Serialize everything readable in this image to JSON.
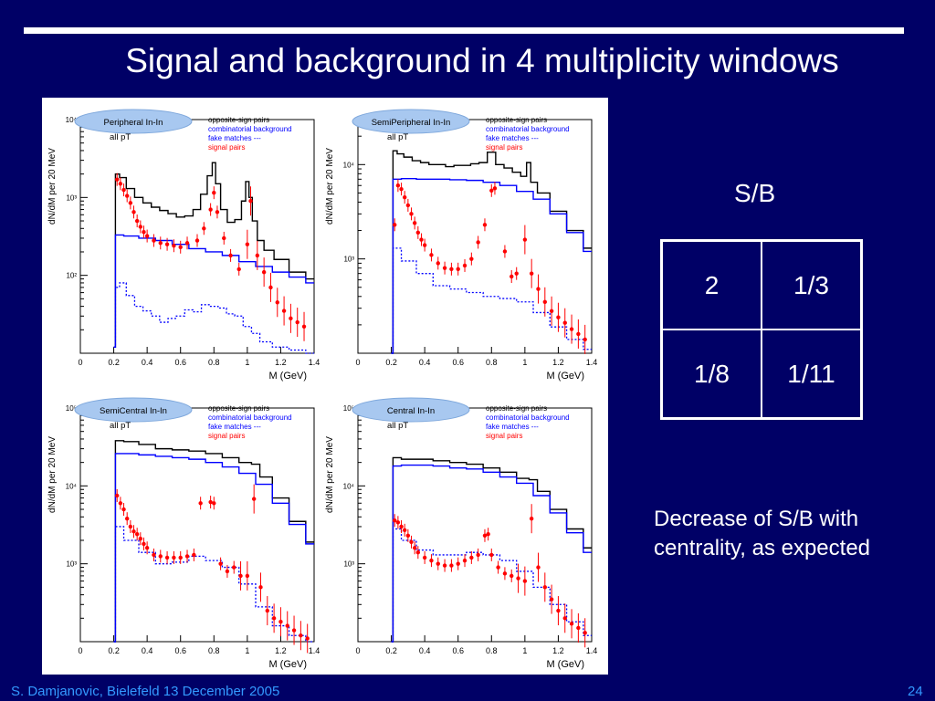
{
  "slide": {
    "title": "Signal and background in 4 multiplicity windows",
    "footer_left": "S. Damjanovic, Bielefeld 13 December 2005",
    "page_number": "24"
  },
  "sb": {
    "label": "S/B",
    "table": [
      [
        "2",
        "1/3"
      ],
      [
        "1/8",
        "1/11"
      ]
    ]
  },
  "note": "Decrease of S/B with centrality, as expected",
  "colors": {
    "background": "#000066",
    "text": "#ffffff",
    "footer": "#3399ff",
    "oppositeSign": "#000000",
    "combinatorial": "#0000ff",
    "fake": "#0000ff",
    "signal": "#ff0000"
  },
  "chart_data": [
    {
      "type": "line",
      "title": "Peripheral In-In",
      "subtitle": "all pT",
      "xlabel": "M (GeV)",
      "ylabel": "dN/dM per 20 MeV",
      "xlim": [
        0,
        1.4
      ],
      "ylim": [
        10,
        10000
      ],
      "yscale": "log",
      "xticks": [
        "0",
        "0.2",
        "0.4",
        "0.6",
        "0.8",
        "1",
        "1.2",
        "1.4"
      ],
      "yticks": [
        {
          "v": 100,
          "label": "10²"
        },
        {
          "v": 1000,
          "label": "10³"
        },
        {
          "v": 10000,
          "label": "10⁴"
        }
      ],
      "legend": [
        "opposite-sign pairs",
        "combinatorial background",
        "fake matches ---",
        "signal pairs"
      ],
      "series": [
        {
          "name": "opposite-sign pairs",
          "x": [
            0.2,
            0.22,
            0.25,
            0.3,
            0.35,
            0.4,
            0.45,
            0.5,
            0.55,
            0.6,
            0.65,
            0.7,
            0.74,
            0.78,
            0.8,
            0.82,
            0.86,
            0.9,
            0.95,
            0.98,
            1.0,
            1.02,
            1.04,
            1.08,
            1.12,
            1.2,
            1.3,
            1.4
          ],
          "y": [
            12,
            2000,
            1800,
            1300,
            1000,
            850,
            750,
            680,
            620,
            560,
            580,
            700,
            1100,
            1900,
            2800,
            1500,
            700,
            480,
            520,
            900,
            1600,
            1000,
            500,
            280,
            210,
            160,
            110,
            90
          ]
        },
        {
          "name": "combinatorial background",
          "x": [
            0.2,
            0.22,
            0.3,
            0.4,
            0.5,
            0.6,
            0.7,
            0.8,
            0.9,
            1.0,
            1.1,
            1.2,
            1.3,
            1.4
          ],
          "y": [
            12,
            330,
            320,
            300,
            280,
            250,
            220,
            200,
            180,
            150,
            130,
            110,
            95,
            80
          ]
        },
        {
          "name": "fake matches",
          "x": [
            0.2,
            0.22,
            0.25,
            0.3,
            0.35,
            0.4,
            0.45,
            0.5,
            0.55,
            0.6,
            0.65,
            0.7,
            0.75,
            0.8,
            0.85,
            0.9,
            0.95,
            1.0,
            1.05,
            1.1,
            1.2,
            1.3,
            1.4
          ],
          "y": [
            12,
            70,
            80,
            55,
            40,
            35,
            30,
            25,
            28,
            30,
            36,
            34,
            42,
            40,
            38,
            32,
            30,
            22,
            18,
            14,
            12,
            11,
            10
          ]
        },
        {
          "name": "signal pairs",
          "x": [
            0.22,
            0.24,
            0.26,
            0.28,
            0.3,
            0.32,
            0.34,
            0.36,
            0.38,
            0.4,
            0.44,
            0.48,
            0.52,
            0.56,
            0.6,
            0.64,
            0.7,
            0.74,
            0.78,
            0.8,
            0.82,
            0.86,
            0.9,
            0.95,
            1.0,
            1.02,
            1.06,
            1.1,
            1.14,
            1.18,
            1.22,
            1.26,
            1.3,
            1.34
          ],
          "y": [
            1700,
            1500,
            1250,
            1050,
            850,
            650,
            500,
            420,
            360,
            320,
            280,
            260,
            250,
            240,
            230,
            260,
            280,
            400,
            700,
            1150,
            650,
            300,
            180,
            120,
            250,
            900,
            180,
            110,
            70,
            45,
            35,
            28,
            25,
            22
          ]
        }
      ]
    },
    {
      "type": "line",
      "title": "SemiPeripheral In-In",
      "subtitle": "all pT",
      "xlabel": "M (GeV)",
      "ylabel": "dN/dM per 20 MeV",
      "xlim": [
        0,
        1.4
      ],
      "ylim": [
        100,
        30000
      ],
      "yscale": "log",
      "xticks": [
        "0",
        "0.2",
        "0.4",
        "0.6",
        "0.8",
        "1",
        "1.2",
        "1.4"
      ],
      "yticks": [
        {
          "v": 1000,
          "label": "10³"
        },
        {
          "v": 10000,
          "label": "10⁴"
        }
      ],
      "legend": [
        "opposite-sign pairs",
        "combinatorial background",
        "fake matches ---",
        "signal pairs"
      ],
      "series": [
        {
          "name": "opposite-sign pairs",
          "x": [
            0.2,
            0.22,
            0.25,
            0.3,
            0.35,
            0.4,
            0.45,
            0.5,
            0.55,
            0.6,
            0.65,
            0.7,
            0.75,
            0.8,
            0.85,
            0.9,
            0.95,
            1.0,
            1.02,
            1.05,
            1.1,
            1.2,
            1.3,
            1.4
          ],
          "y": [
            100,
            14000,
            13000,
            12000,
            11000,
            10500,
            10000,
            10000,
            9500,
            9800,
            9800,
            10200,
            10500,
            13500,
            10000,
            9200,
            8300,
            7500,
            10500,
            6500,
            5000,
            3200,
            2000,
            1300
          ]
        },
        {
          "name": "combinatorial background",
          "x": [
            0.2,
            0.22,
            0.3,
            0.4,
            0.5,
            0.6,
            0.7,
            0.8,
            0.9,
            1.0,
            1.1,
            1.2,
            1.3,
            1.4
          ],
          "y": [
            100,
            7000,
            7100,
            7000,
            7000,
            6900,
            6800,
            6500,
            6000,
            5200,
            4300,
            3000,
            1900,
            1200
          ]
        },
        {
          "name": "fake matches",
          "x": [
            0.2,
            0.22,
            0.3,
            0.4,
            0.5,
            0.6,
            0.7,
            0.8,
            0.9,
            1.0,
            1.1,
            1.2,
            1.3,
            1.4
          ],
          "y": [
            100,
            1300,
            950,
            700,
            520,
            480,
            440,
            400,
            380,
            350,
            270,
            190,
            140,
            110
          ]
        },
        {
          "name": "signal pairs",
          "x": [
            0.22,
            0.24,
            0.26,
            0.28,
            0.3,
            0.32,
            0.34,
            0.36,
            0.38,
            0.4,
            0.44,
            0.48,
            0.52,
            0.56,
            0.6,
            0.64,
            0.68,
            0.72,
            0.76,
            0.8,
            0.82,
            0.88,
            0.92,
            0.95,
            1.0,
            1.04,
            1.08,
            1.12,
            1.16,
            1.2,
            1.24,
            1.28,
            1.32,
            1.36
          ],
          "y": [
            2300,
            6000,
            5500,
            4500,
            3700,
            3000,
            2400,
            1900,
            1600,
            1400,
            1100,
            900,
            800,
            780,
            780,
            850,
            1000,
            1500,
            2300,
            5300,
            5600,
            1200,
            650,
            700,
            1600,
            700,
            480,
            350,
            280,
            240,
            210,
            180,
            160,
            140
          ]
        }
      ]
    },
    {
      "type": "line",
      "title": "SemiCentral In-In",
      "subtitle": "all pT",
      "xlabel": "M (GeV)",
      "ylabel": "dN/dM per 20 MeV",
      "xlim": [
        0,
        1.4
      ],
      "ylim": [
        100,
        100000
      ],
      "yscale": "log",
      "xticks": [
        "0",
        "0.2",
        "0.4",
        "0.6",
        "0.8",
        "1",
        "1.2",
        "1.4"
      ],
      "yticks": [
        {
          "v": 1000,
          "label": "10³"
        },
        {
          "v": 10000,
          "label": "10⁴"
        },
        {
          "v": 100000,
          "label": "10⁵"
        }
      ],
      "legend": [
        "opposite-sign pairs",
        "combinatorial background",
        "fake matches ---",
        "signal pairs"
      ],
      "series": [
        {
          "name": "opposite-sign pairs",
          "x": [
            0.2,
            0.22,
            0.3,
            0.4,
            0.5,
            0.6,
            0.7,
            0.8,
            0.9,
            1.0,
            1.05,
            1.1,
            1.2,
            1.3,
            1.4
          ],
          "y": [
            100,
            38000,
            37000,
            34000,
            30000,
            29000,
            28000,
            26000,
            23000,
            20000,
            19000,
            13000,
            7000,
            3500,
            1900
          ]
        },
        {
          "name": "combinatorial background",
          "x": [
            0.2,
            0.22,
            0.3,
            0.4,
            0.5,
            0.6,
            0.7,
            0.8,
            0.9,
            1.0,
            1.1,
            1.2,
            1.3,
            1.4
          ],
          "y": [
            100,
            26000,
            26000,
            25000,
            24000,
            23000,
            22000,
            20000,
            17500,
            14500,
            10500,
            6000,
            3200,
            1800
          ]
        },
        {
          "name": "fake matches",
          "x": [
            0.2,
            0.22,
            0.3,
            0.4,
            0.5,
            0.6,
            0.7,
            0.8,
            0.9,
            1.0,
            1.1,
            1.2,
            1.3,
            1.4
          ],
          "y": [
            100,
            3000,
            2000,
            1400,
            1000,
            1050,
            1250,
            1100,
            900,
            550,
            280,
            160,
            120,
            100
          ]
        },
        {
          "name": "signal pairs",
          "x": [
            0.22,
            0.24,
            0.26,
            0.28,
            0.3,
            0.32,
            0.34,
            0.36,
            0.38,
            0.4,
            0.44,
            0.48,
            0.52,
            0.56,
            0.6,
            0.64,
            0.68,
            0.72,
            0.78,
            0.8,
            0.84,
            0.88,
            0.92,
            0.96,
            1.0,
            1.04,
            1.08,
            1.12,
            1.16,
            1.2,
            1.24,
            1.28,
            1.32,
            1.36
          ],
          "y": [
            7500,
            6000,
            5000,
            3800,
            3000,
            2600,
            2400,
            2100,
            1800,
            1600,
            1300,
            1250,
            1200,
            1200,
            1200,
            1250,
            1300,
            6000,
            6200,
            6000,
            1000,
            800,
            900,
            700,
            700,
            6800,
            500,
            250,
            200,
            180,
            160,
            140,
            120,
            110
          ]
        }
      ]
    },
    {
      "type": "line",
      "title": "Central In-In",
      "subtitle": "all pT",
      "xlabel": "M (GeV)",
      "ylabel": "dN/dM per 20 MeV",
      "xlim": [
        0,
        1.4
      ],
      "ylim": [
        100,
        100000
      ],
      "yscale": "log",
      "xticks": [
        "0",
        "0.2",
        "0.4",
        "0.6",
        "0.8",
        "1",
        "1.2",
        "1.4"
      ],
      "yticks": [
        {
          "v": 1000,
          "label": "10³"
        },
        {
          "v": 10000,
          "label": "10⁴"
        },
        {
          "v": 100000,
          "label": "10⁵"
        }
      ],
      "legend": [
        "opposite-sign pairs",
        "combinatorial background",
        "fake matches ---",
        "signal pairs"
      ],
      "series": [
        {
          "name": "opposite-sign pairs",
          "x": [
            0.2,
            0.22,
            0.3,
            0.4,
            0.5,
            0.6,
            0.7,
            0.8,
            0.9,
            1.0,
            1.05,
            1.1,
            1.2,
            1.3,
            1.4
          ],
          "y": [
            100,
            23000,
            22000,
            22000,
            21000,
            20000,
            19000,
            17000,
            15000,
            12500,
            12000,
            8500,
            5000,
            2800,
            1600
          ]
        },
        {
          "name": "combinatorial background",
          "x": [
            0.2,
            0.22,
            0.3,
            0.4,
            0.5,
            0.6,
            0.7,
            0.8,
            0.9,
            1.0,
            1.1,
            1.2,
            1.3,
            1.4
          ],
          "y": [
            100,
            18000,
            18500,
            18500,
            18000,
            17000,
            16500,
            15000,
            13000,
            10800,
            7500,
            4500,
            2500,
            1400
          ]
        },
        {
          "name": "fake matches",
          "x": [
            0.2,
            0.22,
            0.3,
            0.4,
            0.5,
            0.6,
            0.7,
            0.8,
            0.9,
            1.0,
            1.1,
            1.2,
            1.3,
            1.4
          ],
          "y": [
            100,
            2800,
            2000,
            1500,
            1300,
            1300,
            1400,
            1300,
            1100,
            800,
            500,
            300,
            180,
            120
          ]
        },
        {
          "name": "signal pairs",
          "x": [
            0.22,
            0.24,
            0.26,
            0.28,
            0.3,
            0.32,
            0.34,
            0.36,
            0.4,
            0.44,
            0.48,
            0.52,
            0.56,
            0.6,
            0.64,
            0.68,
            0.72,
            0.76,
            0.78,
            0.8,
            0.84,
            0.88,
            0.92,
            0.96,
            1.0,
            1.04,
            1.08,
            1.12,
            1.16,
            1.2,
            1.24,
            1.28,
            1.32,
            1.36
          ],
          "y": [
            3600,
            3400,
            3000,
            2700,
            2300,
            1900,
            1600,
            1400,
            1200,
            1100,
            1000,
            950,
            950,
            1000,
            1100,
            1200,
            1300,
            2300,
            2400,
            1300,
            900,
            750,
            700,
            650,
            600,
            3800,
            900,
            500,
            350,
            250,
            200,
            170,
            150,
            130
          ]
        }
      ]
    }
  ]
}
